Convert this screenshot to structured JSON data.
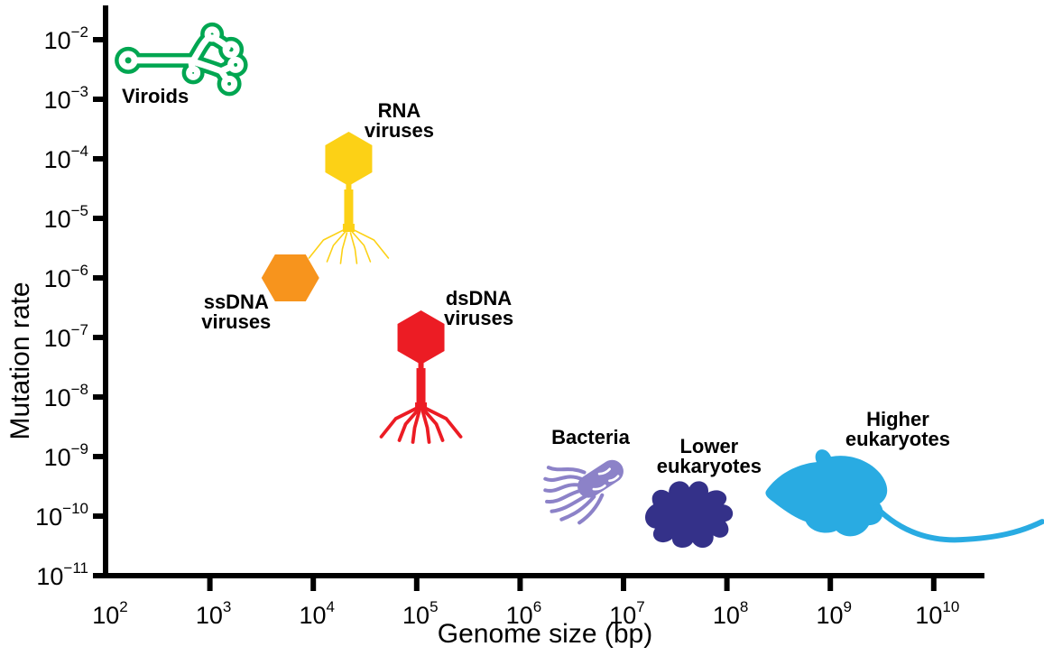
{
  "figure": {
    "background": "#ffffff",
    "axis_color": "#000000"
  },
  "chart_data": {
    "type": "scatter",
    "title": "",
    "xlabel": "Genome size (bp)",
    "ylabel": "Mutation rate",
    "x_axis": {
      "scale": "log",
      "unit": "bp",
      "label_exponents": [
        2,
        3,
        4,
        5,
        6,
        7,
        8,
        9,
        10
      ],
      "tick_exponents": [
        3,
        4,
        5,
        6,
        7,
        8,
        9,
        10
      ],
      "min": 100,
      "max": 30000000000
    },
    "y_axis": {
      "scale": "log",
      "label_exponents": [
        -2,
        -3,
        -4,
        -5,
        -6,
        -7,
        -8,
        -9,
        -10,
        -11
      ],
      "tick_exponents": [
        -2,
        -3,
        -4,
        -5,
        -6,
        -7,
        -8,
        -9,
        -10,
        -11
      ],
      "min": 1e-11,
      "max": 0.02
    },
    "legend_position": "none",
    "grid": false,
    "points": [
      {
        "name": "Viroids",
        "label_lines": [
          "Viroids"
        ],
        "icon": "viroid-icon",
        "color": "#00A651",
        "genome_size_bp": 500,
        "mutation_rate": 0.005,
        "label_offset": [
          -26,
          50
        ]
      },
      {
        "name": "RNA viruses",
        "label_lines": [
          "RNA",
          "viruses"
        ],
        "icon": "rna-phage-icon",
        "color": "#FCD116",
        "genome_size_bp": 22000,
        "mutation_rate": 0.0001,
        "label_offset": [
          56,
          -46
        ]
      },
      {
        "name": "ssDNA viruses",
        "label_lines": [
          "ssDNA",
          "viruses"
        ],
        "icon": "hexagon-icon",
        "color": "#F7941D",
        "genome_size_bp": 6000,
        "mutation_rate": 1e-06,
        "label_offset": [
          -60,
          34
        ]
      },
      {
        "name": "dsDNA viruses",
        "label_lines": [
          "dsDNA",
          "viruses"
        ],
        "icon": "dna-phage-icon",
        "color": "#EC1C24",
        "genome_size_bp": 110000,
        "mutation_rate": 1e-07,
        "label_offset": [
          64,
          -36
        ]
      },
      {
        "name": "Bacteria",
        "label_lines": [
          "Bacteria"
        ],
        "icon": "bacterium-icon",
        "color": "#7B6FB6",
        "icon_color": "#8C82C8",
        "genome_size_bp": 5000000,
        "mutation_rate": 3.5e-10,
        "label_offset": [
          -2,
          -44
        ]
      },
      {
        "name": "Lower eukaryotes",
        "label_lines": [
          "Lower",
          "eukaryotes"
        ],
        "icon": "amoeba-icon",
        "color": "#343189",
        "genome_size_bp": 45000000,
        "mutation_rate": 1.2e-10,
        "label_offset": [
          20,
          -65
        ]
      },
      {
        "name": "Higher eukaryotes",
        "label_lines": [
          "Higher",
          "eukaryotes"
        ],
        "icon": "mouse-icon",
        "color": "#29ABE2",
        "genome_size_bp": 1100000000,
        "mutation_rate": 2e-10,
        "label_offset": [
          70,
          -80
        ]
      }
    ]
  }
}
